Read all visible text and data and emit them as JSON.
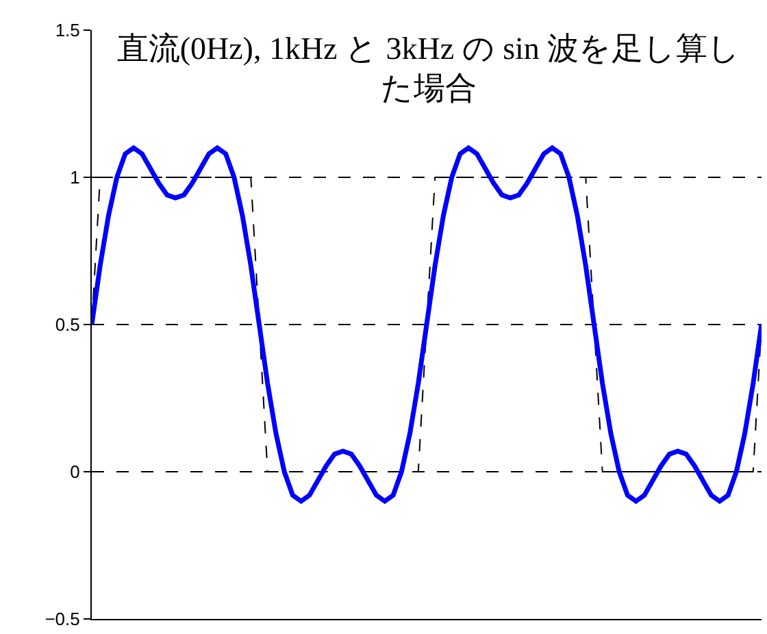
{
  "chart_data": {
    "type": "line",
    "title": "直流(0Hz), 1kHz と 3kHz の sin 波を足し算した場合",
    "categories": [
      null,
      null,
      null,
      null,
      null,
      null,
      null,
      null,
      null,
      null,
      null,
      null,
      null,
      null,
      null,
      null,
      null,
      null,
      null,
      null,
      null,
      null,
      null,
      null,
      null,
      null,
      null,
      null,
      null,
      null,
      null,
      null,
      null,
      null,
      null,
      null,
      null,
      null,
      null,
      null,
      null,
      null,
      null,
      null,
      null,
      null,
      null,
      null,
      null,
      null,
      null,
      null,
      null,
      null,
      null,
      null,
      null,
      null,
      null,
      null,
      null,
      null,
      null,
      null,
      null,
      null,
      null,
      null,
      null,
      null,
      null,
      null,
      null,
      null,
      null,
      null,
      null,
      null,
      null,
      null,
      null
    ],
    "series": [
      {
        "color": "#000000",
        "line_style": "dashed",
        "values": [
          0.5,
          1,
          1,
          1,
          1,
          1,
          1,
          1,
          1,
          1,
          1,
          1,
          1,
          1,
          1,
          1,
          1,
          1,
          1,
          1,
          0.5,
          0,
          0,
          0,
          0,
          0,
          0,
          0,
          0,
          0,
          0,
          0,
          0,
          0,
          0,
          0,
          0,
          0,
          0,
          0,
          0.5,
          1,
          1,
          1,
          1,
          1,
          1,
          1,
          1,
          1,
          1,
          1,
          1,
          1,
          1,
          1,
          1,
          1,
          1,
          1,
          0.5,
          0,
          0,
          0,
          0,
          0,
          0,
          0,
          0,
          0,
          0,
          0,
          0,
          0,
          0,
          0,
          0,
          0,
          0,
          0,
          0.5
        ]
      },
      {
        "color": "#0000ff",
        "line_style": "solid",
        "values": [
          0.5,
          0.7,
          0.87,
          1.0,
          1.08,
          1.1,
          1.08,
          1.03,
          0.98,
          0.94,
          0.93,
          0.94,
          0.98,
          1.03,
          1.08,
          1.1,
          1.08,
          1.0,
          0.87,
          0.7,
          0.5,
          0.3,
          0.13,
          0.0,
          -0.08,
          -0.1,
          -0.08,
          -0.03,
          0.02,
          0.06,
          0.07,
          0.06,
          0.02,
          -0.03,
          -0.08,
          -0.1,
          -0.08,
          0.0,
          0.13,
          0.3,
          0.5,
          0.7,
          0.87,
          1.0,
          1.08,
          1.1,
          1.08,
          1.03,
          0.98,
          0.94,
          0.93,
          0.94,
          0.98,
          1.03,
          1.08,
          1.1,
          1.08,
          1.0,
          0.87,
          0.7,
          0.5,
          0.3,
          0.13,
          0.0,
          -0.08,
          -0.1,
          -0.08,
          -0.03,
          0.02,
          0.06,
          0.07,
          0.06,
          0.02,
          -0.03,
          -0.08,
          -0.1,
          -0.08,
          0.0,
          0.13,
          0.3,
          0.5
        ]
      }
    ],
    "ylim": [
      -0.5,
      1.5
    ],
    "yticks": [
      {
        "value": -0.5,
        "label": "−0.5"
      },
      0,
      0.5,
      1,
      1.5
    ],
    "grid": "y"
  }
}
